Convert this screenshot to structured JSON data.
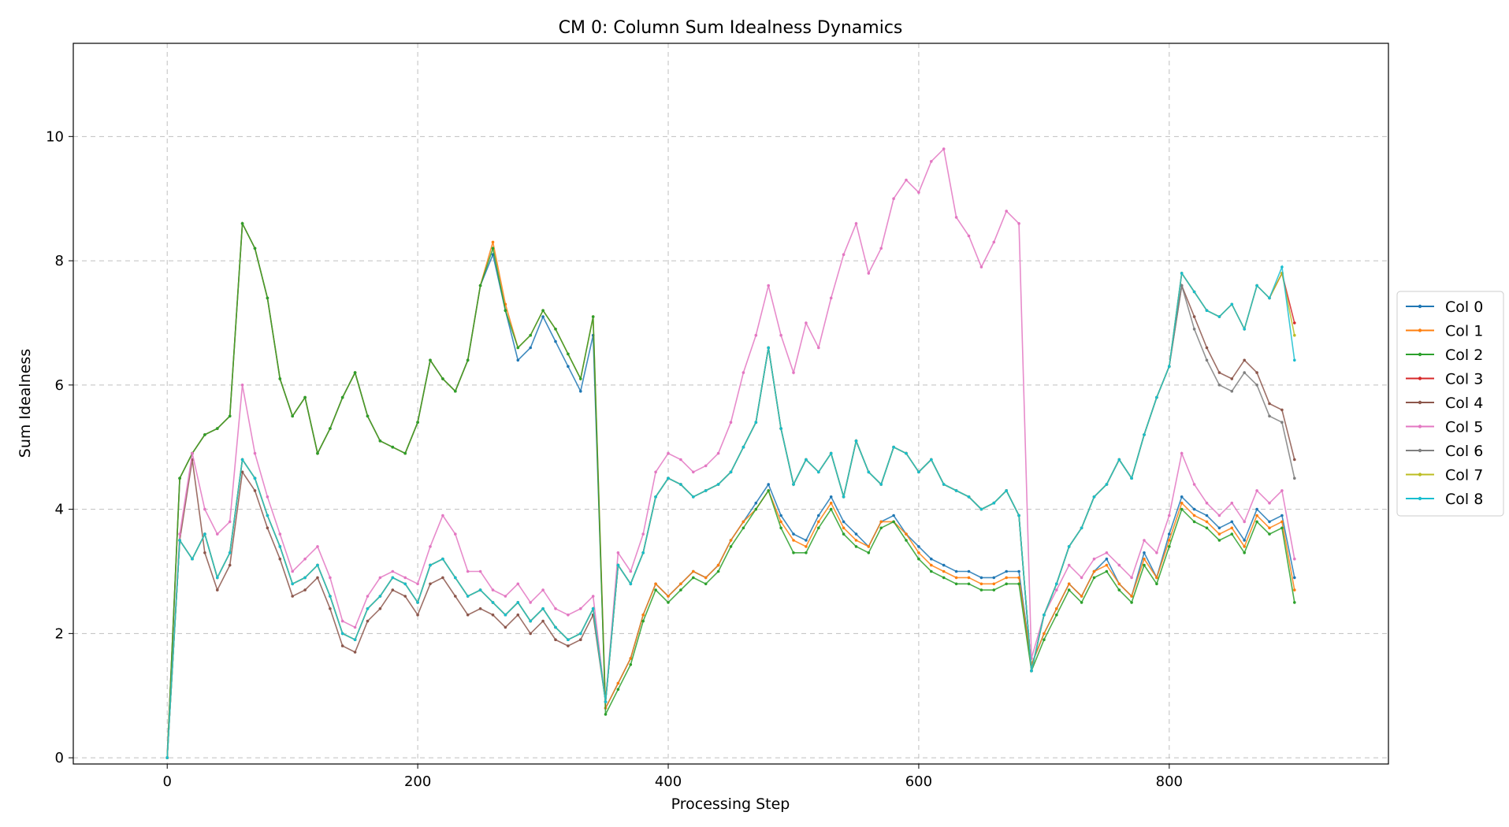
{
  "chart_data": {
    "type": "line",
    "title": "CM 0: Column Sum Idealness Dynamics",
    "xlabel": "Processing Step",
    "ylabel": "Sum Idealness",
    "xlim": [
      -75,
      975
    ],
    "ylim": [
      -0.1,
      11.5
    ],
    "xticks": [
      0,
      200,
      400,
      600,
      800
    ],
    "yticks": [
      0,
      2,
      4,
      6,
      8,
      10
    ],
    "grid": true,
    "legend_position": "right",
    "x_step": 25,
    "series": [
      {
        "name": "Col 0",
        "color": "#1f77b4",
        "values": [
          0,
          4.5,
          4.9,
          5.2,
          5.3,
          5.5,
          8.6,
          8.2,
          7.4,
          6.1,
          5.5,
          5.8,
          4.9,
          5.3,
          5.8,
          6.2,
          5.5,
          5.1,
          5.0,
          4.9,
          5.4,
          6.4,
          6.1,
          5.9,
          6.4,
          7.6,
          8.1,
          7.2,
          6.4,
          6.6,
          7.1,
          6.7,
          6.3,
          5.9,
          6.8,
          0.8,
          1.2,
          1.6,
          2.3,
          2.8,
          2.6,
          2.8,
          3.0,
          2.9,
          3.1,
          3.5,
          3.8,
          4.1,
          4.4,
          3.9,
          3.6,
          3.5,
          3.9,
          4.2,
          3.8,
          3.6,
          3.4,
          3.8,
          3.9,
          3.6,
          3.4,
          3.2,
          3.1,
          3.0,
          3.0,
          2.9,
          2.9,
          3.0,
          3.0,
          1.5,
          2.0,
          2.4,
          2.8,
          2.6,
          3.0,
          3.2,
          2.8,
          2.6,
          3.3,
          2.9,
          3.6,
          4.2,
          4.0,
          3.9,
          3.7,
          3.8,
          3.5,
          4.0,
          3.8,
          3.9,
          2.9
        ]
      },
      {
        "name": "Col 1",
        "color": "#ff7f0e",
        "values": [
          0,
          4.5,
          4.9,
          5.2,
          5.3,
          5.5,
          8.6,
          8.2,
          7.4,
          6.1,
          5.5,
          5.8,
          4.9,
          5.3,
          5.8,
          6.2,
          5.5,
          5.1,
          5.0,
          4.9,
          5.4,
          6.4,
          6.1,
          5.9,
          6.4,
          7.6,
          8.3,
          7.3,
          6.6,
          6.8,
          7.2,
          6.9,
          6.5,
          6.1,
          7.1,
          0.8,
          1.2,
          1.6,
          2.3,
          2.8,
          2.6,
          2.8,
          3.0,
          2.9,
          3.1,
          3.5,
          3.8,
          4.0,
          4.3,
          3.8,
          3.5,
          3.4,
          3.8,
          4.1,
          3.7,
          3.5,
          3.4,
          3.8,
          3.8,
          3.6,
          3.3,
          3.1,
          3.0,
          2.9,
          2.9,
          2.8,
          2.8,
          2.9,
          2.9,
          1.5,
          2.0,
          2.4,
          2.8,
          2.6,
          3.0,
          3.1,
          2.8,
          2.6,
          3.2,
          2.9,
          3.5,
          4.1,
          3.9,
          3.8,
          3.6,
          3.7,
          3.4,
          3.9,
          3.7,
          3.8,
          2.7
        ]
      },
      {
        "name": "Col 2",
        "color": "#2ca02c",
        "values": [
          0,
          4.5,
          4.9,
          5.2,
          5.3,
          5.5,
          8.6,
          8.2,
          7.4,
          6.1,
          5.5,
          5.8,
          4.9,
          5.3,
          5.8,
          6.2,
          5.5,
          5.1,
          5.0,
          4.9,
          5.4,
          6.4,
          6.1,
          5.9,
          6.4,
          7.6,
          8.2,
          7.2,
          6.6,
          6.8,
          7.2,
          6.9,
          6.5,
          6.1,
          7.1,
          0.7,
          1.1,
          1.5,
          2.2,
          2.7,
          2.5,
          2.7,
          2.9,
          2.8,
          3.0,
          3.4,
          3.7,
          4.0,
          4.3,
          3.7,
          3.3,
          3.3,
          3.7,
          4.0,
          3.6,
          3.4,
          3.3,
          3.7,
          3.8,
          3.5,
          3.2,
          3.0,
          2.9,
          2.8,
          2.8,
          2.7,
          2.7,
          2.8,
          2.8,
          1.4,
          1.9,
          2.3,
          2.7,
          2.5,
          2.9,
          3.0,
          2.7,
          2.5,
          3.1,
          2.8,
          3.4,
          4.0,
          3.8,
          3.7,
          3.5,
          3.6,
          3.3,
          3.8,
          3.6,
          3.7,
          2.5
        ]
      },
      {
        "name": "Col 3",
        "color": "#d62728",
        "values": [
          0,
          3.5,
          3.2,
          3.6,
          2.9,
          3.3,
          4.8,
          4.5,
          3.9,
          3.4,
          2.8,
          2.9,
          3.1,
          2.6,
          2.0,
          1.9,
          2.4,
          2.6,
          2.9,
          2.8,
          2.5,
          3.1,
          3.2,
          2.9,
          2.6,
          2.7,
          2.5,
          2.3,
          2.5,
          2.2,
          2.4,
          2.1,
          1.9,
          2.0,
          2.4,
          0.9,
          3.1,
          2.8,
          3.3,
          4.2,
          4.5,
          4.4,
          4.2,
          4.3,
          4.4,
          4.6,
          5.0,
          5.4,
          6.6,
          5.3,
          4.4,
          4.8,
          4.6,
          4.9,
          4.2,
          5.1,
          4.6,
          4.4,
          5.0,
          4.9,
          4.6,
          4.8,
          4.4,
          4.3,
          4.2,
          4.0,
          4.1,
          4.3,
          3.9,
          1.4,
          2.3,
          2.8,
          3.4,
          3.7,
          4.2,
          4.4,
          4.8,
          4.5,
          5.2,
          5.8,
          6.3,
          7.8,
          7.5,
          7.2,
          7.1,
          7.3,
          6.9,
          7.6,
          7.4,
          7.8,
          7.0
        ]
      },
      {
        "name": "Col 4",
        "color": "#8c564b",
        "values": [
          0,
          3.5,
          4.8,
          3.3,
          2.7,
          3.1,
          4.6,
          4.3,
          3.7,
          3.2,
          2.6,
          2.7,
          2.9,
          2.4,
          1.8,
          1.7,
          2.2,
          2.4,
          2.7,
          2.6,
          2.3,
          2.8,
          2.9,
          2.6,
          2.3,
          2.4,
          2.3,
          2.1,
          2.3,
          2.0,
          2.2,
          1.9,
          1.8,
          1.9,
          2.3,
          0.9,
          3.1,
          2.8,
          3.3,
          4.2,
          4.5,
          4.4,
          4.2,
          4.3,
          4.4,
          4.6,
          5.0,
          5.4,
          6.6,
          5.3,
          4.4,
          4.8,
          4.6,
          4.9,
          4.2,
          5.1,
          4.6,
          4.4,
          5.0,
          4.9,
          4.6,
          4.8,
          4.4,
          4.3,
          4.2,
          4.0,
          4.1,
          4.3,
          3.9,
          1.4,
          2.3,
          2.8,
          3.4,
          3.7,
          4.2,
          4.4,
          4.8,
          4.5,
          5.2,
          5.8,
          6.3,
          7.6,
          7.1,
          6.6,
          6.2,
          6.1,
          6.4,
          6.2,
          5.7,
          5.6,
          4.8
        ]
      },
      {
        "name": "Col 5",
        "color": "#e377c2",
        "values": [
          0,
          3.6,
          4.9,
          4.0,
          3.6,
          3.8,
          6.0,
          4.9,
          4.2,
          3.6,
          3.0,
          3.2,
          3.4,
          2.9,
          2.2,
          2.1,
          2.6,
          2.9,
          3.0,
          2.9,
          2.8,
          3.4,
          3.9,
          3.6,
          3.0,
          3.0,
          2.7,
          2.6,
          2.8,
          2.5,
          2.7,
          2.4,
          2.3,
          2.4,
          2.6,
          0.9,
          3.3,
          3.0,
          3.6,
          4.6,
          4.9,
          4.8,
          4.6,
          4.7,
          4.9,
          5.4,
          6.2,
          6.8,
          7.6,
          6.8,
          6.2,
          7.0,
          6.6,
          7.4,
          8.1,
          8.6,
          7.8,
          8.2,
          9.0,
          9.3,
          9.1,
          9.6,
          9.8,
          8.7,
          8.4,
          7.9,
          8.3,
          8.8,
          8.6,
          1.6,
          2.3,
          2.7,
          3.1,
          2.9,
          3.2,
          3.3,
          3.1,
          2.9,
          3.5,
          3.3,
          3.9,
          4.9,
          4.4,
          4.1,
          3.9,
          4.1,
          3.8,
          4.3,
          4.1,
          4.3,
          3.2
        ]
      },
      {
        "name": "Col 6",
        "color": "#7f7f7f",
        "values": [
          0,
          3.5,
          3.2,
          3.6,
          2.9,
          3.3,
          4.8,
          4.5,
          3.9,
          3.4,
          2.8,
          2.9,
          3.1,
          2.6,
          2.0,
          1.9,
          2.4,
          2.6,
          2.9,
          2.8,
          2.5,
          3.1,
          3.2,
          2.9,
          2.6,
          2.7,
          2.5,
          2.3,
          2.5,
          2.2,
          2.4,
          2.1,
          1.9,
          2.0,
          2.4,
          0.9,
          3.1,
          2.8,
          3.3,
          4.2,
          4.5,
          4.4,
          4.2,
          4.3,
          4.4,
          4.6,
          5.0,
          5.4,
          6.6,
          5.3,
          4.4,
          4.8,
          4.6,
          4.9,
          4.2,
          5.1,
          4.6,
          4.4,
          5.0,
          4.9,
          4.6,
          4.8,
          4.4,
          4.3,
          4.2,
          4.0,
          4.1,
          4.3,
          3.9,
          1.4,
          2.3,
          2.8,
          3.4,
          3.7,
          4.2,
          4.4,
          4.8,
          4.5,
          5.2,
          5.8,
          6.3,
          7.6,
          6.9,
          6.4,
          6.0,
          5.9,
          6.2,
          6.0,
          5.5,
          5.4,
          4.5
        ]
      },
      {
        "name": "Col 7",
        "color": "#bcbd22",
        "values": [
          0,
          3.5,
          3.2,
          3.6,
          2.9,
          3.3,
          4.8,
          4.5,
          3.9,
          3.4,
          2.8,
          2.9,
          3.1,
          2.6,
          2.0,
          1.9,
          2.4,
          2.6,
          2.9,
          2.8,
          2.5,
          3.1,
          3.2,
          2.9,
          2.6,
          2.7,
          2.5,
          2.3,
          2.5,
          2.2,
          2.4,
          2.1,
          1.9,
          2.0,
          2.4,
          0.9,
          3.1,
          2.8,
          3.3,
          4.2,
          4.5,
          4.4,
          4.2,
          4.3,
          4.4,
          4.6,
          5.0,
          5.4,
          6.6,
          5.3,
          4.4,
          4.8,
          4.6,
          4.9,
          4.2,
          5.1,
          4.6,
          4.4,
          5.0,
          4.9,
          4.6,
          4.8,
          4.4,
          4.3,
          4.2,
          4.0,
          4.1,
          4.3,
          3.9,
          1.4,
          2.3,
          2.8,
          3.4,
          3.7,
          4.2,
          4.4,
          4.8,
          4.5,
          5.2,
          5.8,
          6.3,
          7.8,
          7.5,
          7.2,
          7.1,
          7.3,
          6.9,
          7.6,
          7.4,
          7.8,
          6.8
        ]
      },
      {
        "name": "Col 8",
        "color": "#17becf",
        "values": [
          0,
          3.5,
          3.2,
          3.6,
          2.9,
          3.3,
          4.8,
          4.5,
          3.9,
          3.4,
          2.8,
          2.9,
          3.1,
          2.6,
          2.0,
          1.9,
          2.4,
          2.6,
          2.9,
          2.8,
          2.5,
          3.1,
          3.2,
          2.9,
          2.6,
          2.7,
          2.5,
          2.3,
          2.5,
          2.2,
          2.4,
          2.1,
          1.9,
          2.0,
          2.4,
          0.9,
          3.1,
          2.8,
          3.3,
          4.2,
          4.5,
          4.4,
          4.2,
          4.3,
          4.4,
          4.6,
          5.0,
          5.4,
          6.6,
          5.3,
          4.4,
          4.8,
          4.6,
          4.9,
          4.2,
          5.1,
          4.6,
          4.4,
          5.0,
          4.9,
          4.6,
          4.8,
          4.4,
          4.3,
          4.2,
          4.0,
          4.1,
          4.3,
          3.9,
          1.4,
          2.3,
          2.8,
          3.4,
          3.7,
          4.2,
          4.4,
          4.8,
          4.5,
          5.2,
          5.8,
          6.3,
          7.8,
          7.5,
          7.2,
          7.1,
          7.3,
          6.9,
          7.6,
          7.4,
          7.9,
          6.4
        ]
      }
    ]
  }
}
